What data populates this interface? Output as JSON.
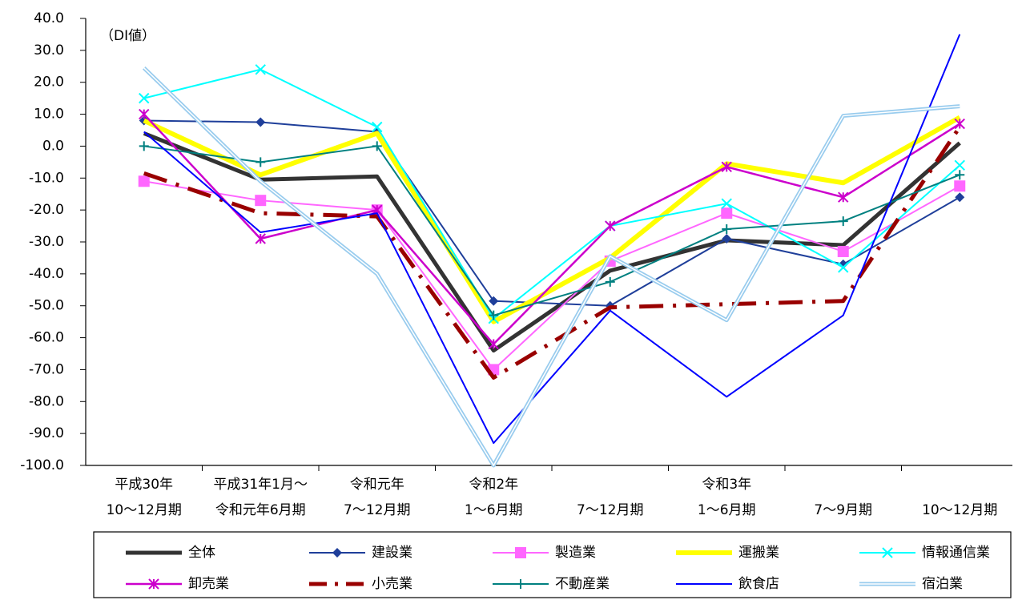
{
  "chart_data": {
    "type": "line",
    "annotation": "（DI値）",
    "categories": [
      [
        "平成30年",
        "10～12月期"
      ],
      [
        "平成31年1月～",
        "令和元年6月期"
      ],
      [
        "令和元年",
        "7～12月期"
      ],
      [
        "令和2年",
        "1～6月期"
      ],
      [
        "7～12月期"
      ],
      [
        "令和3年",
        "1～6月期"
      ],
      [
        "7～9月期"
      ],
      [
        "10～12月期"
      ]
    ],
    "ylim": [
      -100,
      40
    ],
    "yticks": [
      {
        "value": -100,
        "label": "-100.0"
      },
      {
        "value": -90,
        "label": "-90.0"
      },
      {
        "value": -80,
        "label": "-80.0"
      },
      {
        "value": -70,
        "label": "-70.0"
      },
      {
        "value": -60,
        "label": "-60.0"
      },
      {
        "value": -50,
        "label": "-50.0"
      },
      {
        "value": -40,
        "label": "-40.0"
      },
      {
        "value": -30,
        "label": "-30.0"
      },
      {
        "value": -20,
        "label": "-20.0"
      },
      {
        "value": -10,
        "label": "-10.0"
      },
      {
        "value": 0,
        "label": "0.0"
      },
      {
        "value": 10,
        "label": "10.0"
      },
      {
        "value": 20,
        "label": "20.0"
      },
      {
        "value": 30,
        "label": "30.0"
      },
      {
        "value": 40,
        "label": "40.0"
      }
    ],
    "series": [
      {
        "name": "全体",
        "color": "#333333",
        "width": 5,
        "marker": "none",
        "values": [
          4,
          -10.5,
          -9.5,
          -64,
          -39,
          -29.5,
          -31,
          1
        ]
      },
      {
        "name": "建設業",
        "color": "#1f3f9a",
        "width": 2,
        "marker": "diamond",
        "values": [
          8,
          7.5,
          4.5,
          -48.5,
          -50,
          -29,
          -37,
          -16
        ]
      },
      {
        "name": "製造業",
        "color": "#ff66ff",
        "width": 2,
        "marker": "square",
        "values": [
          -11,
          -17,
          -20,
          -70,
          -36,
          -21,
          -33,
          -12.5
        ]
      },
      {
        "name": "運搬業",
        "color": "#ffff00",
        "width": 6,
        "marker": "none",
        "values": [
          8,
          -9,
          4,
          -55,
          -35,
          -5.5,
          -11.5,
          9
        ]
      },
      {
        "name": "情報通信業",
        "color": "#00ffff",
        "width": 2,
        "marker": "x",
        "values": [
          15,
          24,
          6,
          -54,
          -25,
          -18,
          -38,
          -6
        ]
      },
      {
        "name": "卸売業",
        "color": "#cc00cc",
        "width": 2.5,
        "marker": "star",
        "values": [
          10,
          -29,
          -20,
          -62,
          -25,
          -6.5,
          -16,
          7
        ]
      },
      {
        "name": "小売業",
        "color": "#990000",
        "width": 5,
        "marker": "none",
        "dash": "30 12 4 12",
        "values": [
          -8.5,
          -21,
          -22,
          -72.5,
          -50.5,
          -49.5,
          -48.5,
          6
        ]
      },
      {
        "name": "不動産業",
        "color": "#008080",
        "width": 2,
        "marker": "plus",
        "values": [
          0,
          -5,
          0,
          -53,
          -42.5,
          -26,
          -23.5,
          -9
        ]
      },
      {
        "name": "飲食店",
        "color": "#0000ff",
        "width": 2,
        "marker": "none",
        "values": [
          4.5,
          -27,
          -21,
          -93,
          -51.5,
          -78.5,
          -53,
          35
        ]
      },
      {
        "name": "宿泊業",
        "color": "#99ccee",
        "width": 5,
        "marker": "none",
        "double": true,
        "values": [
          24.5,
          -11,
          -40,
          -100,
          -34.5,
          -54.5,
          9.5,
          12.5
        ]
      }
    ]
  }
}
